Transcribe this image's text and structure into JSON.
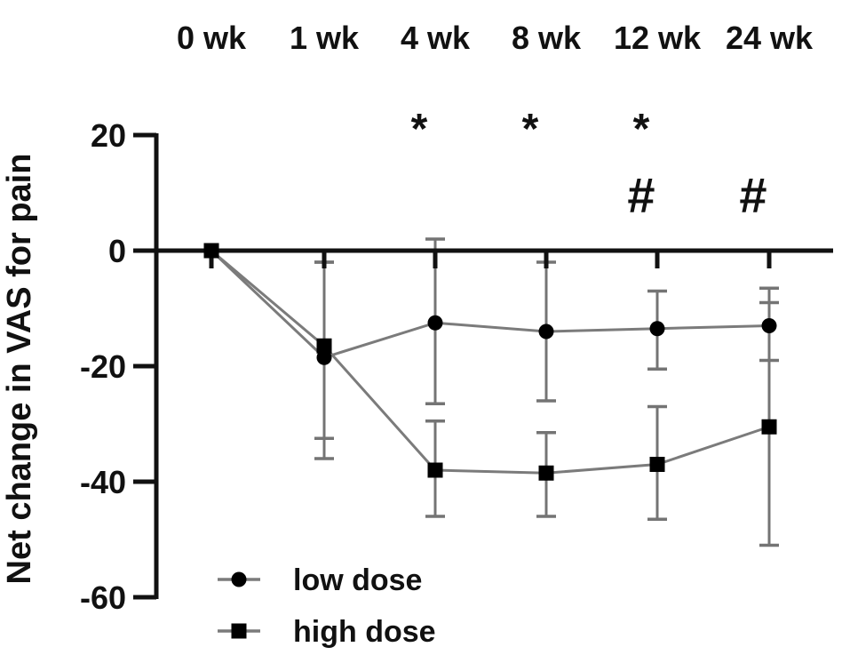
{
  "figure": {
    "background": "#ffffff"
  },
  "chart_data": {
    "type": "line",
    "title": "",
    "xlabel": "",
    "ylabel": "Net change in VAS for pain",
    "categories": [
      "0 wk",
      "1 wk",
      "4 wk",
      "8 wk",
      "12 wk",
      "24 wk"
    ],
    "y_ticks": [
      20,
      0,
      -20,
      -40,
      -60
    ],
    "ylim": [
      -60,
      20
    ],
    "grid": false,
    "legend_position": "inside-bottom-left",
    "colors": {
      "axis": "#111111",
      "text": "#111111",
      "series_line": "#7b7b7b",
      "error_bar": "#747474",
      "marker": "#000000"
    },
    "series": [
      {
        "name": "low dose",
        "marker": "circle",
        "values": [
          0,
          -18.5,
          -12.5,
          -14,
          -13.5,
          -13
        ],
        "err_upper": [
          0,
          -2,
          2,
          -2,
          -7,
          -6.5
        ],
        "err_lower": [
          0,
          -36,
          -26.5,
          -26,
          -20.5,
          -19
        ]
      },
      {
        "name": "high dose",
        "marker": "square",
        "values": [
          0,
          -16.5,
          -38,
          -38.5,
          -37,
          -30.5
        ],
        "err_upper": [
          0,
          -2,
          -29.5,
          -31.5,
          -27,
          -9
        ],
        "err_lower": [
          0,
          -32.5,
          -46,
          -46,
          -46.5,
          -51
        ]
      }
    ],
    "annotations": [
      {
        "symbol": "*",
        "category": "4 wk"
      },
      {
        "symbol": "*",
        "category": "8 wk"
      },
      {
        "symbol": "*",
        "category": "12 wk"
      },
      {
        "symbol": "#",
        "category": "12 wk"
      },
      {
        "symbol": "#",
        "category": "24 wk"
      }
    ]
  }
}
